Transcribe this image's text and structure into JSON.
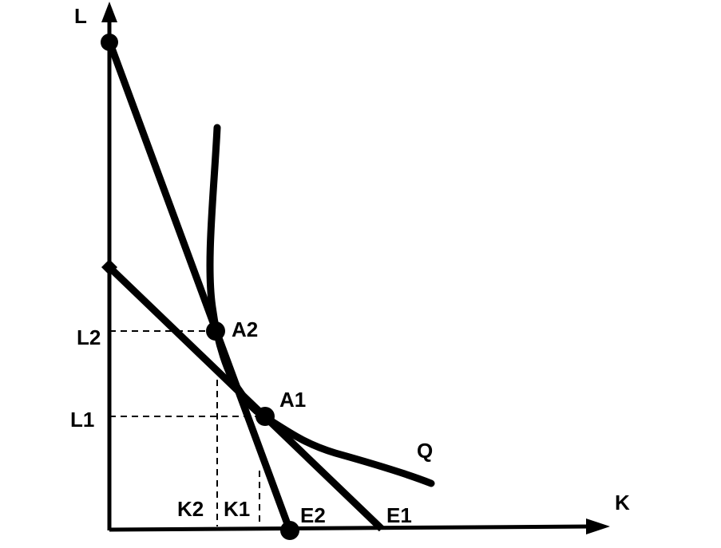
{
  "axes": {
    "y_label": "L",
    "x_label": "K"
  },
  "levels": {
    "l2": "L2",
    "l1": "L1",
    "k2": "K2",
    "k1": "K1"
  },
  "points": {
    "a2": "A2",
    "a1": "A1",
    "e2": "E2",
    "e1": "E1"
  },
  "curve": {
    "label": "Q"
  }
}
